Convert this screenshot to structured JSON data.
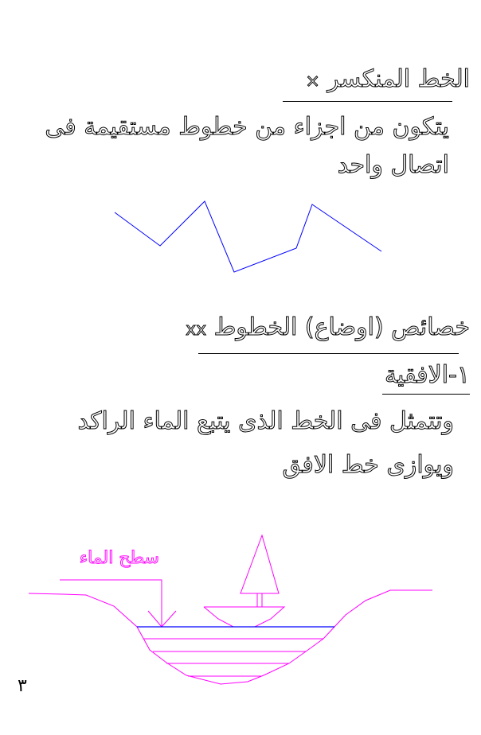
{
  "section1": {
    "bullet": "×",
    "title": "الخط المنكسر",
    "body_line1": "يتكون من اجزاء من خطوط مستقيمة فى",
    "body_line2": "اتصال واحد"
  },
  "section2": {
    "bullet": "xx",
    "title": "خصائص (اوضاع) الخطوط",
    "subtitle": "١-الافقية",
    "body_line1": "وتتمثل فى الخط الذى يتبع الماء الراكد",
    "body_line2": "ويوازى خط الافق"
  },
  "diagram": {
    "label": "سطح الماء",
    "colors": {
      "zigzag": "#0000ff",
      "water_surface": "#0000ff",
      "drawing": "#ff00ff",
      "label": "#ff00ff"
    }
  },
  "page_number": "٣"
}
